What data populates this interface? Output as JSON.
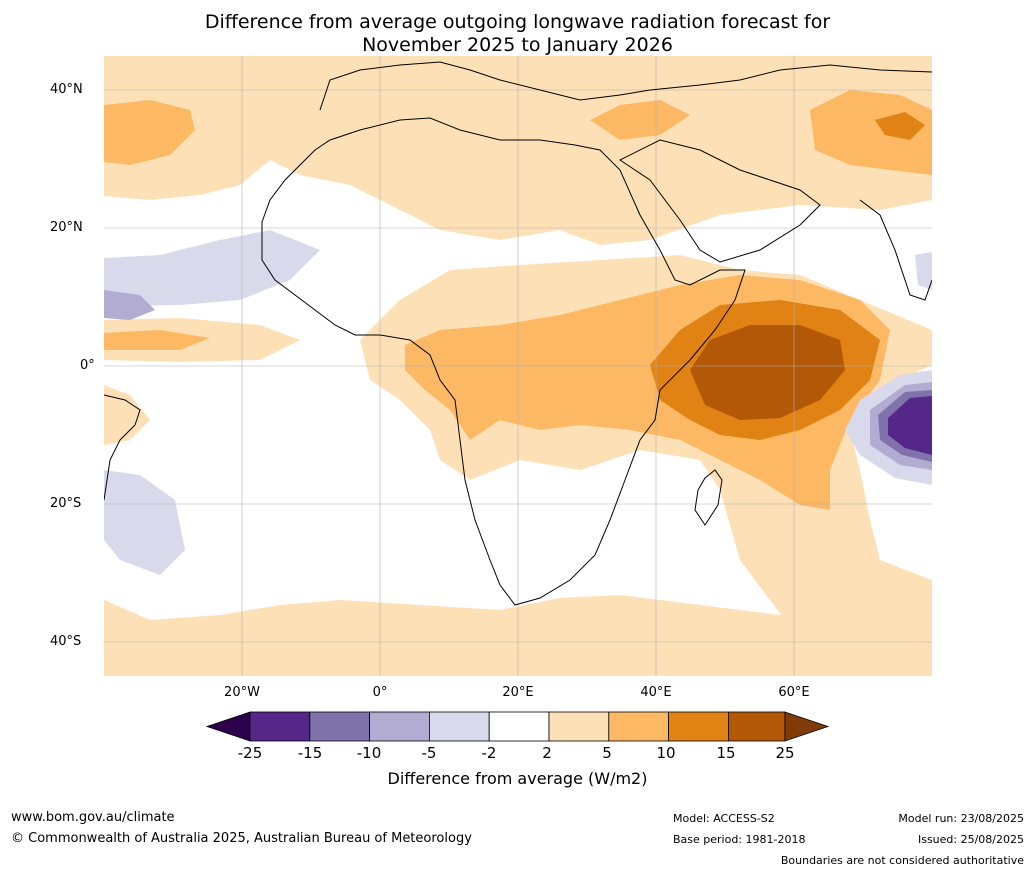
{
  "title": {
    "line1": "Difference from average outgoing longwave radiation forecast for",
    "line2": "November 2025 to January 2026"
  },
  "axes": {
    "lat_labels": [
      "40°N",
      "20°N",
      "0°",
      "20°S",
      "40°S"
    ],
    "lon_labels": [
      "20°W",
      "0°",
      "20°E",
      "40°E",
      "60°E"
    ]
  },
  "legend": {
    "title": "Difference from average (W/m2)",
    "ticks": [
      "-25",
      "-15",
      "-10",
      "-5",
      "-2",
      "2",
      "5",
      "10",
      "15",
      "25"
    ],
    "colors": [
      "#2d004b",
      "#542788",
      "#8073ac",
      "#b2abd2",
      "#d8daeb",
      "#ffffff",
      "#fee0b6",
      "#fdb863",
      "#e08214",
      "#b35806",
      "#7f3b08"
    ]
  },
  "footer": {
    "website": "www.bom.gov.au/climate",
    "copyright": "© Commonwealth of Australia 2025, Australian Bureau of Meteorology",
    "model": "Model: ACCESS-S2",
    "base_period": "Base period: 1981-2018",
    "model_run": "Model run: 23/08/2025",
    "issued": "Issued: 25/08/2025",
    "disclaimer": "Boundaries are not considered authoritative"
  }
}
